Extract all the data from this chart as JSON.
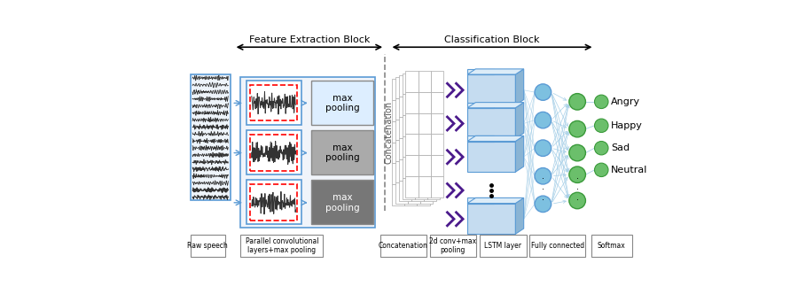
{
  "feature_block_label": "Feature Extraction Block",
  "classification_block_label": "Classification Block",
  "bottom_labels": [
    "Raw speech",
    "Parallel convolutional\nlayers+max pooling",
    "Concatenation",
    "2d conv+max\npooling",
    "LSTM layer",
    "Fully connected",
    "Softmax"
  ],
  "emotion_labels": [
    "Angry",
    "Happy",
    "Sad",
    "Neutral"
  ],
  "fig_width": 9.0,
  "fig_height": 3.41,
  "dpi": 100,
  "pool_colors": [
    "#DDEEFF",
    "#AAAAAA",
    "#777777"
  ],
  "wave_box_color": "#C8DCF0",
  "conv_box_border": "#5B9BD5",
  "pool_box_border": "#555555",
  "lstm_front": "#C5DCF0",
  "lstm_top": "#DCEcF8",
  "lstm_side": "#8AB4D4",
  "fc_node_color": "#7DC0E0",
  "green_color": "#6BBF6B",
  "green_dark": "#3A9A3A",
  "arrow_blue": "#5B9BD5",
  "purple_chev": "#4B1A8C",
  "concat_text_color": "#555555"
}
